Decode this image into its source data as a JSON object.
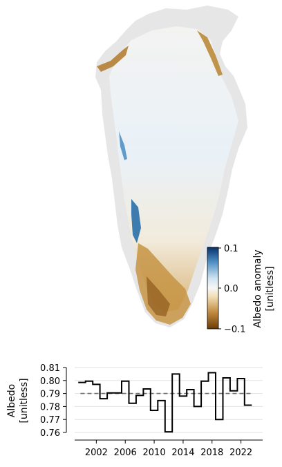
{
  "map": {
    "colorbar": {
      "label_line1": "Albedo anomaly",
      "label_line2": "[unitless]",
      "tick_labels": [
        "0.1",
        "0.0",
        "−0.1"
      ],
      "range": [
        -0.1,
        0.1
      ],
      "colors": {
        "negative_strong": "#6b3b07",
        "negative_mid": "#c08a3e",
        "negative_light": "#f2e0b8",
        "zero": "#f7f7f7",
        "positive_light": "#cfe3f0",
        "positive_mid": "#4d8fc4",
        "positive_strong": "#08306b"
      }
    },
    "land_color": "#e6e6e6"
  },
  "chart_data": {
    "type": "line",
    "title": "",
    "xlabel": "",
    "ylabel_line1": "Albedo",
    "ylabel_line2": "[unitless]",
    "x_tick_labels": [
      "2002",
      "2006",
      "2010",
      "2014",
      "2018",
      "2022"
    ],
    "y_tick_labels": [
      "0.81",
      "0.80",
      "0.79",
      "0.78",
      "0.77",
      "0.76"
    ],
    "ylim": [
      0.76,
      0.81
    ],
    "xlim": [
      1999,
      2025
    ],
    "grid": true,
    "step": "mid",
    "series": [
      {
        "x": [
          2000,
          2001,
          2002,
          2003,
          2004,
          2005,
          2006,
          2007,
          2008,
          2009,
          2010,
          2011,
          2012,
          2013,
          2014,
          2015,
          2016,
          2017,
          2018,
          2019,
          2020,
          2021,
          2022,
          2023
        ],
        "values": [
          0.7985,
          0.7995,
          0.797,
          0.786,
          0.7905,
          0.7905,
          0.7995,
          0.7825,
          0.7885,
          0.7935,
          0.777,
          0.7845,
          0.7605,
          0.805,
          0.788,
          0.793,
          0.78,
          0.7995,
          0.806,
          0.77,
          0.802,
          0.792,
          0.8015,
          0.781
        ],
        "color": "#000000"
      }
    ],
    "reference_line": {
      "value": 0.79,
      "style": "dashed",
      "color": "#6e6e6e"
    }
  }
}
